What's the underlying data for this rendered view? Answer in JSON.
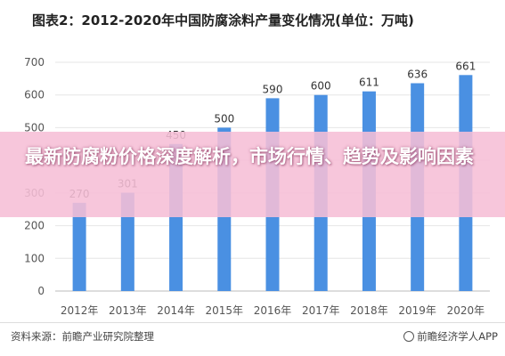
{
  "chart_data": {
    "type": "bar",
    "title": "图表2：2012-2020年中国防腐涂料产量变化情况(单位：万吨)",
    "categories": [
      "2012年",
      "2013年",
      "2014年",
      "2015年",
      "2016年",
      "2017年",
      "2018年",
      "2019年",
      "2020年"
    ],
    "values": [
      270,
      301,
      450,
      500,
      590,
      600,
      611,
      636,
      661
    ],
    "ylim": [
      0,
      700
    ],
    "yticks": [
      0,
      100,
      200,
      300,
      400,
      500,
      600,
      700
    ],
    "bar_color": "#4a90e2",
    "grid": true,
    "legend": "none"
  },
  "overlay": {
    "headline": "最新防腐粉价格深度解析，市场行情、趋势及影响因素",
    "background": "#f6bed6"
  },
  "footer": {
    "source": "资料来源：前瞻产业研究院整理",
    "credit": "前瞻经济学人APP"
  }
}
